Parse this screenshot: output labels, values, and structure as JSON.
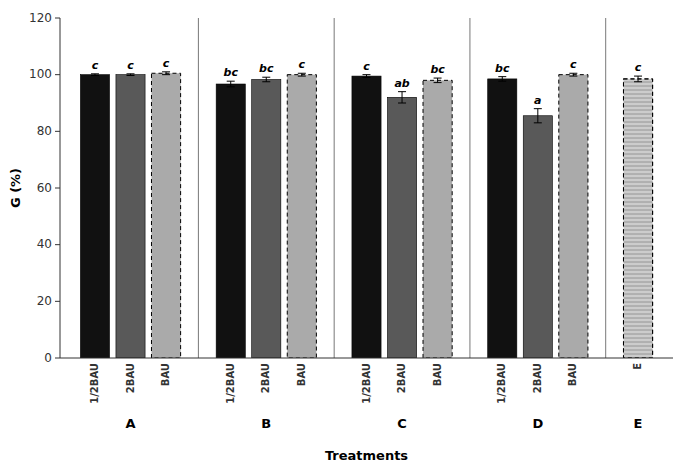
{
  "chart_data": {
    "type": "bar",
    "categories": [
      "A",
      "B",
      "C",
      "D",
      "E"
    ],
    "series": [
      {
        "name": "1/2BAU",
        "color": "#111111",
        "values": [
          100.0,
          96.7,
          99.5,
          98.5,
          null
        ],
        "errors": [
          0.3,
          1.0,
          0.5,
          0.8,
          null
        ],
        "letters": [
          "c",
          "bc",
          "c",
          "bc",
          null
        ]
      },
      {
        "name": "2BAU",
        "color": "#595959",
        "values": [
          100.0,
          98.3,
          92.0,
          85.5,
          null
        ],
        "errors": [
          0.3,
          0.8,
          2.0,
          2.5,
          null
        ],
        "letters": [
          "c",
          "bc",
          "ab",
          "a",
          null
        ]
      },
      {
        "name": "BAU",
        "colors": [
          "#aaaaaa",
          "#aaaaaa",
          "#aaaaaa",
          "#aaaaaa",
          "#cccccc"
        ],
        "line_style": "dashed",
        "values": [
          100.5,
          100.0,
          98.0,
          100.0,
          98.5
        ],
        "errors": [
          0.5,
          0.5,
          0.8,
          0.5,
          1.0
        ],
        "letters": [
          "c",
          "c",
          "bc",
          "c",
          "c"
        ]
      }
    ],
    "xlabel": "Treatments",
    "ylabel": "G (%)",
    "ylim": [
      0,
      120
    ],
    "yticks": [
      0,
      20,
      40,
      60,
      80,
      100,
      120
    ],
    "grid": false
  }
}
